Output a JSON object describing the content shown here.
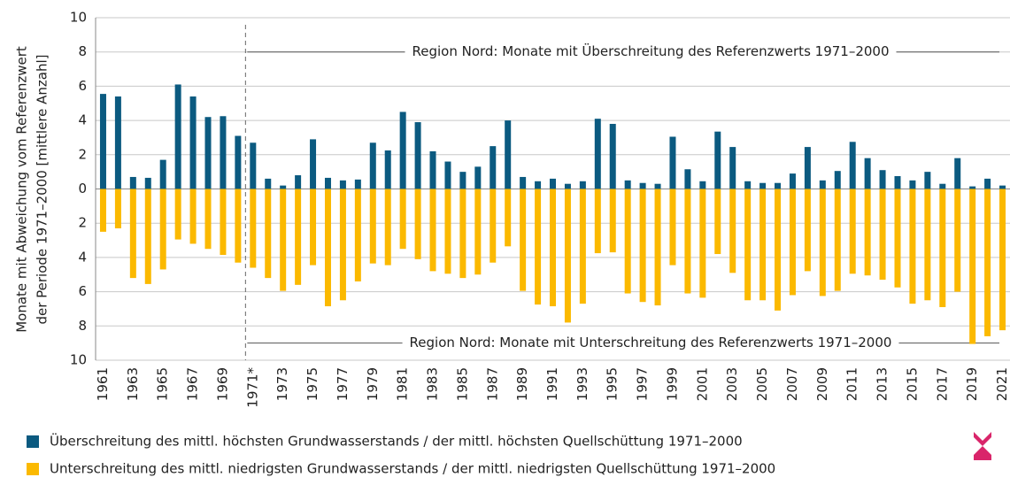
{
  "chart_data": {
    "type": "bar",
    "ylabel": [
      "Monate mit Abweichung vom Referenzwert",
      "der Periode 1971–2000 [mittlere Anzahl]"
    ],
    "annotations": [
      "Region Nord: Monate mit Überschreitung des Referenzwerts 1971–2000",
      "Region Nord: Monate mit Unterschreitung des Referenzwerts 1971–2000"
    ],
    "categories": [
      "1961",
      null,
      "1963",
      null,
      "1965",
      null,
      "1967",
      null,
      "1969",
      null,
      "1971*",
      null,
      "1973",
      null,
      "1975",
      null,
      "1977",
      null,
      "1979",
      null,
      "1981",
      null,
      "1983",
      null,
      "1985",
      null,
      "1987",
      null,
      "1989",
      null,
      "1991",
      null,
      "1993",
      null,
      "1995",
      null,
      "1997",
      null,
      "1999",
      null,
      "2001",
      null,
      "2003",
      null,
      "2005",
      null,
      "2007",
      null,
      "2009",
      null,
      "2011",
      null,
      "2013",
      null,
      "2015",
      null,
      "2017",
      null,
      "2019",
      null,
      "2021"
    ],
    "series": [
      {
        "name": "Überschreitung des mittl. höchsten Grundwasserstands / der mittl. höchsten Quellschüttung 1971–2000",
        "color": "#0b5a80",
        "values": [
          5.55,
          5.4,
          0.7,
          0.65,
          1.7,
          6.1,
          5.4,
          4.2,
          4.25,
          3.1,
          2.7,
          0.6,
          0.2,
          0.8,
          2.9,
          0.65,
          0.5,
          0.55,
          2.7,
          2.25,
          4.5,
          3.9,
          2.2,
          1.6,
          1.0,
          1.3,
          2.5,
          4.0,
          0.7,
          0.45,
          0.6,
          0.3,
          0.45,
          4.1,
          3.8,
          0.5,
          0.35,
          0.3,
          3.05,
          1.15,
          0.45,
          3.35,
          2.45,
          0.45,
          0.35,
          0.35,
          0.9,
          2.45,
          0.5,
          1.05,
          2.75,
          1.8,
          1.1,
          0.75,
          0.5,
          1.0,
          0.3,
          1.8,
          0.15,
          0.6,
          0.2
        ]
      },
      {
        "name": "Unterschreitung des mittl. niedrigsten Grundwasserstands / der mittl. niedrigsten Quellschüttung 1971–2000",
        "color": "#fbb900",
        "values": [
          -2.5,
          -2.3,
          -5.2,
          -5.55,
          -4.7,
          -2.95,
          -3.2,
          -3.5,
          -3.85,
          -4.3,
          -4.6,
          -5.2,
          -5.95,
          -5.6,
          -4.45,
          -6.85,
          -6.5,
          -5.4,
          -4.35,
          -4.45,
          -3.5,
          -4.1,
          -4.8,
          -4.95,
          -5.2,
          -5.0,
          -4.3,
          -3.35,
          -5.95,
          -6.75,
          -6.85,
          -7.8,
          -6.7,
          -3.75,
          -3.7,
          -6.1,
          -6.6,
          -6.8,
          -4.45,
          -6.1,
          -6.35,
          -3.8,
          -4.9,
          -6.5,
          -6.5,
          -7.1,
          -6.2,
          -4.8,
          -6.25,
          -5.95,
          -4.95,
          -5.05,
          -5.3,
          -5.75,
          -6.7,
          -6.5,
          -6.9,
          -6.0,
          -9.05,
          -8.6,
          -8.25
        ]
      }
    ],
    "ylim": [
      -10,
      10
    ],
    "yticks": [
      {
        "value": -10,
        "label": "10"
      },
      {
        "value": -8,
        "label": "8"
      },
      {
        "value": -6,
        "label": "6"
      },
      {
        "value": -4,
        "label": "4"
      },
      {
        "value": -2,
        "label": "2"
      },
      0,
      2,
      4,
      6,
      8,
      10
    ],
    "grid": true
  }
}
